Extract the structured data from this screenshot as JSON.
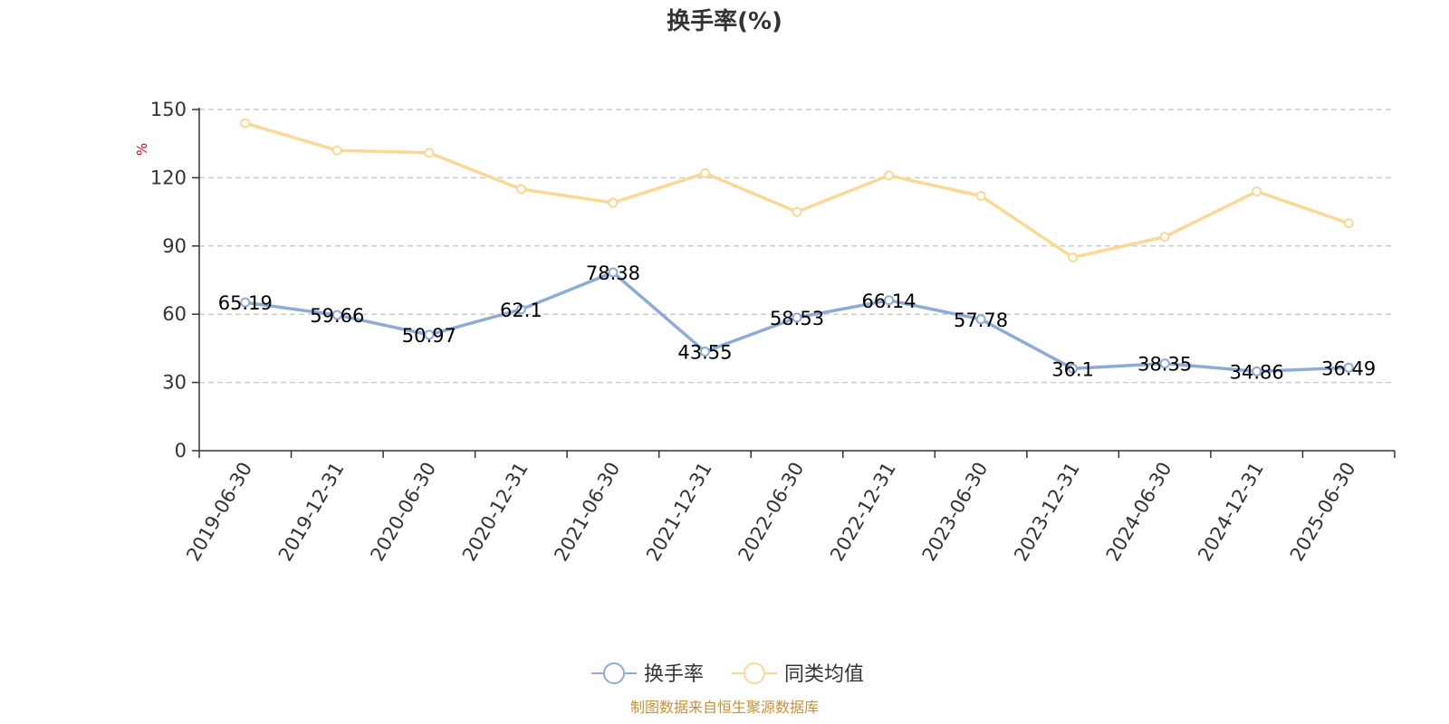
{
  "chart_data": {
    "type": "line",
    "title": "换手率(%)",
    "ylabel": "%",
    "ylim": [
      0,
      150
    ],
    "yticks": [
      0,
      30,
      60,
      90,
      120,
      150
    ],
    "grid": true,
    "legend_position": "bottom-center",
    "categories": [
      "2019-06-30",
      "2019-12-31",
      "2020-06-30",
      "2020-12-31",
      "2021-06-30",
      "2021-12-31",
      "2022-06-30",
      "2022-12-31",
      "2023-06-30",
      "2023-12-31",
      "2024-06-30",
      "2024-12-31",
      "2025-06-30"
    ],
    "series": [
      {
        "name": "换手率",
        "color": "#8eabd8",
        "show_labels": true,
        "values": [
          65.19,
          59.66,
          50.97,
          62.1,
          78.38,
          43.55,
          58.53,
          66.14,
          57.78,
          36.1,
          38.35,
          34.86,
          36.49
        ],
        "labels": [
          "65.19",
          "59.66",
          "50.97",
          "62.1",
          "78.38",
          "43.55",
          "58.53",
          "66.14",
          "57.78",
          "36.1",
          "38.35",
          "34.86",
          "36.49"
        ]
      },
      {
        "name": "同类均值",
        "color": "#fad996",
        "show_labels": false,
        "values": [
          144,
          132,
          131,
          115,
          109,
          122,
          105,
          121,
          112,
          85,
          94,
          114,
          100
        ]
      }
    ],
    "source": "制图数据来自恒生聚源数据库"
  }
}
